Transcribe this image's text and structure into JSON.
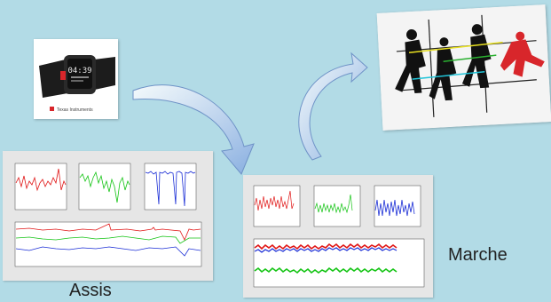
{
  "labels": {
    "sitting": "Assis",
    "walking": "Marche"
  },
  "watch": {
    "time_display": "04:39",
    "brand": "Texas Instruments"
  },
  "colors": {
    "background": "#b2dbe6",
    "series_x": "#e01515",
    "series_y": "#14c414",
    "series_z": "#1b2ed6",
    "arrow_fill": "#9fbde6",
    "arrow_edge": "#6f93c7"
  },
  "icons": {
    "watch": "smartwatch-photo",
    "runner": "running-figures-photo",
    "arrow_1": "curved-arrow-icon",
    "arrow_2": "curved-arrow-icon"
  }
}
